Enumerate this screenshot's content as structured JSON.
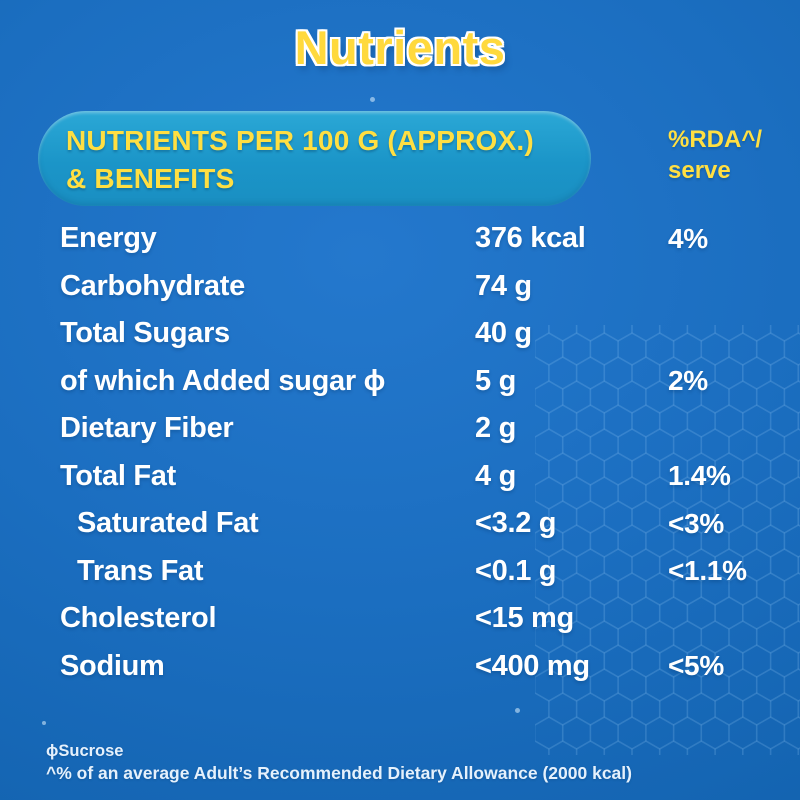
{
  "page": {
    "title": "Nutrients"
  },
  "table": {
    "header": {
      "title_line1": "NUTRIENTS PER 100 G (APPROX.)",
      "title_line2": "& BENEFITS",
      "rda_line1": "%RDA^/",
      "rda_line2": "serve"
    },
    "rows": [
      {
        "label": "Energy",
        "value": "376 kcal",
        "rda": "4%"
      },
      {
        "label": "Carbohydrate",
        "value": "74 g",
        "rda": ""
      },
      {
        "label": "Total Sugars",
        "value": "40 g",
        "rda": ""
      },
      {
        "label": "of which Added sugar ϕ",
        "value": "5 g",
        "rda": "2%"
      },
      {
        "label": "Dietary Fiber",
        "value": "2 g",
        "rda": ""
      },
      {
        "label": "Total Fat",
        "value": "4 g",
        "rda": "1.4%"
      },
      {
        "label": "Saturated Fat",
        "value": "<3.2 g",
        "rda": "<3%"
      },
      {
        "label": "Trans Fat",
        "value": "<0.1 g",
        "rda": "<1.1%"
      },
      {
        "label": "Cholesterol",
        "value": "<15 mg",
        "rda": ""
      },
      {
        "label": "Sodium",
        "value": "<400 mg",
        "rda": "<5%"
      }
    ]
  },
  "footnotes": {
    "line1": "ϕSucrose",
    "line2": "^% of an average Adult’s Recommended Dietary Allowance (2000 kcal)"
  },
  "colors": {
    "background_blue": "#1b6ec0",
    "panel_teal_blue": "#1f9bcd",
    "accent_yellow": "#ffdf42",
    "title_yellow": "#ffd93d",
    "row_text_white": "#ffffff"
  }
}
